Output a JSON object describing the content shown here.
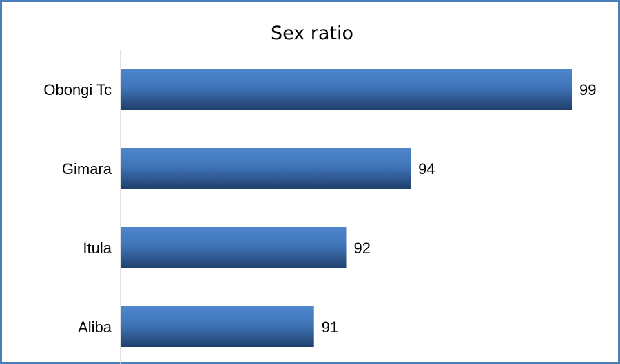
{
  "chart_data": {
    "type": "bar",
    "orientation": "horizontal",
    "title": "Sex ratio",
    "categories": [
      "Obongi Tc",
      "Gimara",
      "Itula",
      "Aliba"
    ],
    "values": [
      99,
      94,
      92,
      91
    ],
    "data_labels": [
      "99",
      "94",
      "92",
      "91"
    ],
    "xlabel": "",
    "ylabel": "",
    "xlim": [
      85,
      100
    ],
    "grid": false,
    "legend": "none",
    "bar_color": "#2f5d9a"
  }
}
